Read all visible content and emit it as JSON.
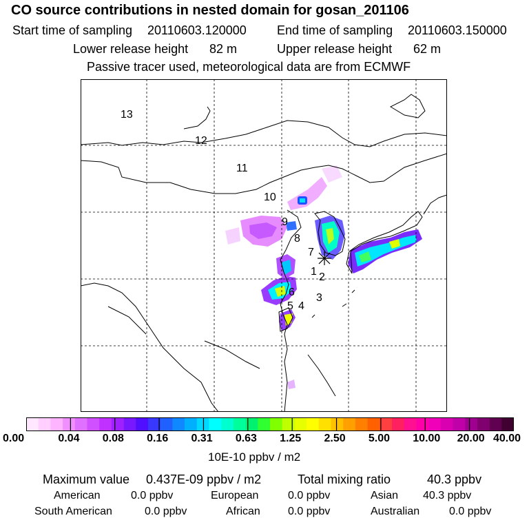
{
  "header": {
    "title": "CO  source contributions in nested domain for gosan_201106",
    "start_label": "Start time of sampling",
    "start_value": "20110603.120000",
    "end_label": "End time of sampling",
    "end_value": "20110603.150000",
    "lower_label": "Lower release height",
    "lower_value": "82 m",
    "upper_label": "Upper release height",
    "upper_value": "62 m",
    "subtitle": "Passive tracer used, meteorological data are from ECMWF"
  },
  "map": {
    "trajectory_labels": [
      "13",
      "12",
      "11",
      "10",
      "9",
      "8",
      "7",
      "1",
      "2",
      "3",
      "4",
      "5",
      "6"
    ],
    "source_marker": "receptor-star"
  },
  "colorbar": {
    "colors": [
      "#ffe8ff",
      "#ffd0ff",
      "#ffb4ff",
      "#f090ff",
      "#e070ff",
      "#d050ff",
      "#c030ff",
      "#a020ff",
      "#7818ff",
      "#5010ff",
      "#3838ff",
      "#2060ff",
      "#1088ff",
      "#00b0ff",
      "#00d8ff",
      "#00ffff",
      "#00ffd0",
      "#00ff9c",
      "#00f070",
      "#30ff30",
      "#80ff00",
      "#c0ff00",
      "#e8ff00",
      "#ffff00",
      "#ffe000",
      "#ffc000",
      "#ffa000",
      "#ff8000",
      "#ff6000",
      "#ff4040",
      "#ff2060",
      "#ff1090",
      "#ff00a8",
      "#f000b8",
      "#d800b0",
      "#c000a8",
      "#a00090",
      "#800070",
      "#600050",
      "#400030"
    ],
    "tick_labels": [
      "0.00",
      "0.04",
      "0.08",
      "0.16",
      "0.31",
      "0.63",
      "1.25",
      "2.50",
      "5.00",
      "10.00",
      "20.00",
      "40.00"
    ],
    "units": "10E-10 ppbv / m2"
  },
  "stats": {
    "max_label": "Maximum value",
    "max_value": "0.437E-09 ppbv / m2",
    "total_label": "Total mixing ratio",
    "total_value": "40.3 ppbv",
    "american_label": "American",
    "american_value": "0.0 ppbv",
    "european_label": "European",
    "european_value": "0.0 ppbv",
    "asian_label": "Asian",
    "asian_value": "40.3 ppbv",
    "south_american_label": "South American",
    "south_american_value": "0.0 ppbv",
    "african_label": "African",
    "african_value": "0.0 ppbv",
    "australian_label": "Australian",
    "australian_value": "0.0 ppbv"
  }
}
